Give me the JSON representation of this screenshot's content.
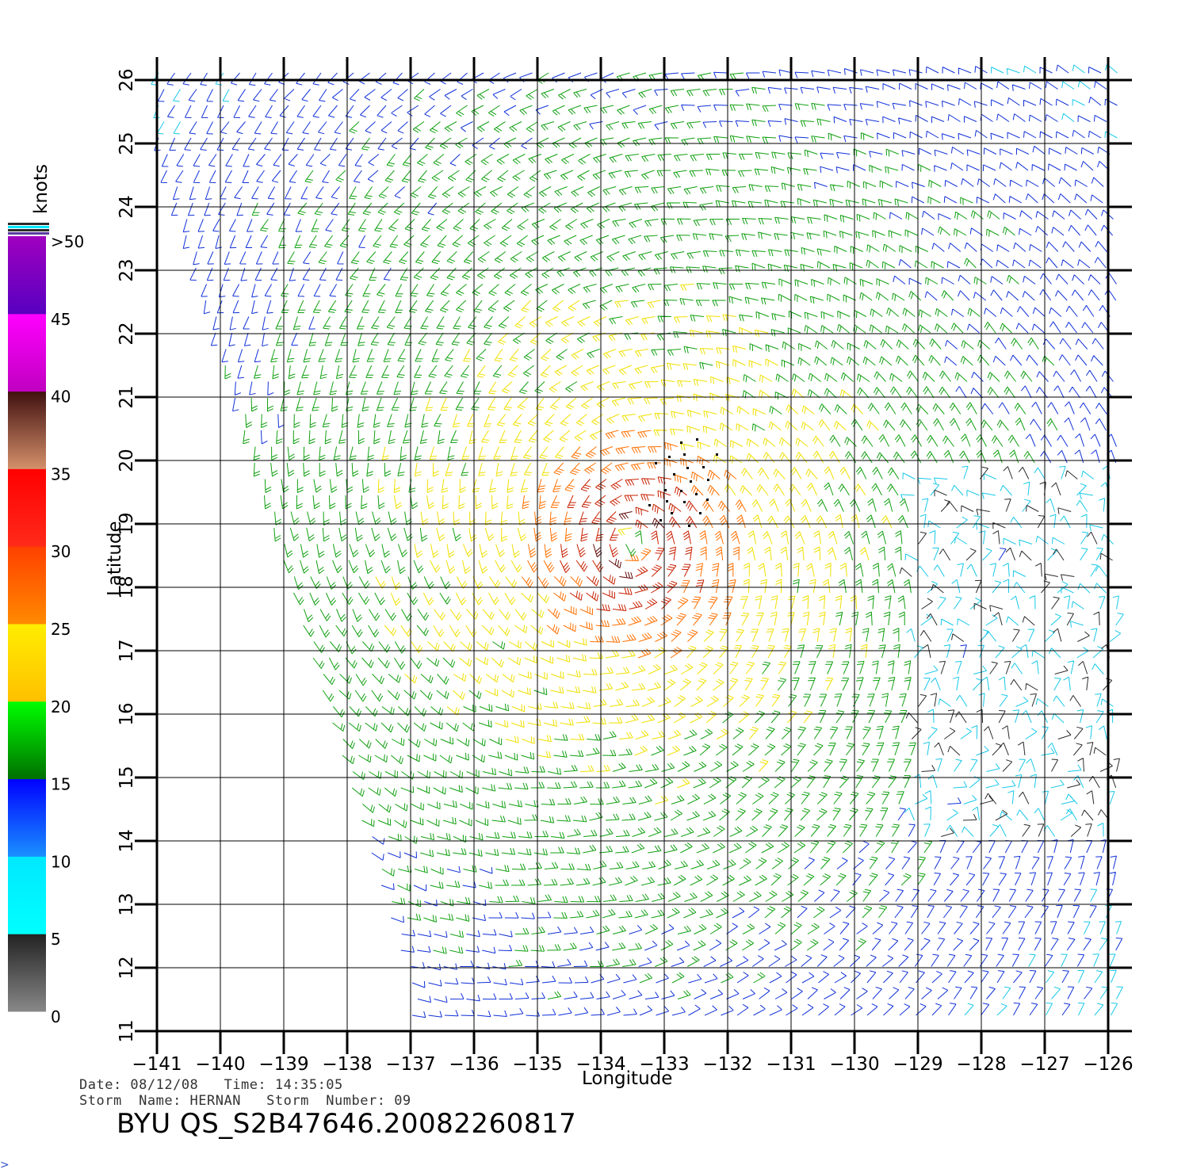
{
  "colorbar": {
    "unit": "knots",
    "labels": [
      ">50",
      "45",
      "40",
      "35",
      "30",
      "25",
      "20",
      "15",
      "10",
      "5",
      "0"
    ],
    "bands": [
      {
        "from": 0,
        "to": 5,
        "top": "#222222",
        "bottom": "#888888"
      },
      {
        "from": 5,
        "to": 10,
        "top": "#00e8ff",
        "bottom": "#00ffff"
      },
      {
        "from": 10,
        "to": 15,
        "top": "#0000ff",
        "bottom": "#1a90ff"
      },
      {
        "from": 15,
        "to": 20,
        "top": "#00ff00",
        "bottom": "#007000"
      },
      {
        "from": 20,
        "to": 25,
        "top": "#ffee00",
        "bottom": "#ffc000"
      },
      {
        "from": 25,
        "to": 30,
        "top": "#ff4000",
        "bottom": "#ff8a00"
      },
      {
        "from": 30,
        "to": 35,
        "top": "#ff0000",
        "bottom": "#ff2a1a"
      },
      {
        "from": 35,
        "to": 40,
        "top": "#401010",
        "bottom": "#d4906a"
      },
      {
        "from": 40,
        "to": 45,
        "top": "#ff00ff",
        "bottom": "#c000c0"
      },
      {
        "from": 45,
        "to": 50,
        "top": "#a000c0",
        "bottom": "#5800c0"
      }
    ]
  },
  "map": {
    "xlabel": "Longitude",
    "ylabel": "Latitude",
    "lon_range": [
      -141,
      -126
    ],
    "lat_range": [
      11,
      26
    ],
    "lon_ticks": [
      -141,
      -140,
      -139,
      -138,
      -137,
      -136,
      -135,
      -134,
      -133,
      -132,
      -131,
      -130,
      -129,
      -128,
      -127,
      -126
    ],
    "lat_ticks": [
      11,
      12,
      13,
      14,
      15,
      16,
      17,
      18,
      19,
      20,
      21,
      22,
      23,
      24,
      25,
      26
    ],
    "lon_tick_labels": [
      "−141",
      "−140",
      "−139",
      "−138",
      "−137",
      "−136",
      "−135",
      "−134",
      "−133",
      "−132",
      "−131",
      "−130",
      "−129",
      "−128",
      "−127",
      "−126"
    ],
    "lat_tick_labels": [
      "11",
      "12",
      "13",
      "14",
      "15",
      "16",
      "17",
      "18",
      "19",
      "20",
      "21",
      "22",
      "23",
      "24",
      "25",
      "26"
    ],
    "grid": true,
    "storm_center": {
      "lon": -133.5,
      "lat": 18.7
    },
    "max_wind_knots": 40
  },
  "info": {
    "line1": "Date: 08/12/08   Time: 14:35:05",
    "line2": "Storm  Name: HERNAN   Storm  Number: 09",
    "product": "BYU  QS_S2B47646.20082260817"
  },
  "corner_mark": ">"
}
